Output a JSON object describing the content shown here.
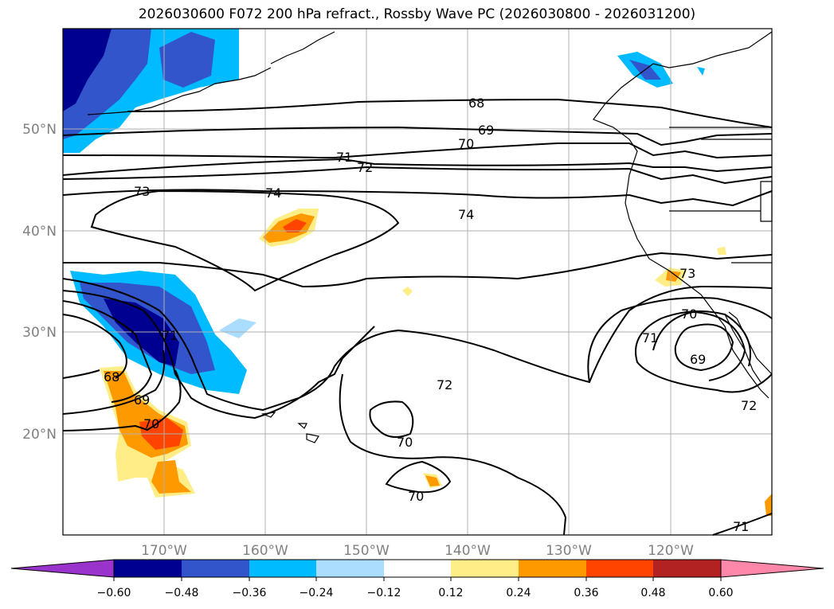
{
  "title": "2026030600 F072 200 hPa refract., Rossby Wave PC (2026030800 - 2026031200)",
  "map": {
    "lon_ticks": [
      "170°W",
      "160°W",
      "150°W",
      "140°W",
      "130°W",
      "120°W"
    ],
    "lat_ticks": [
      "50°N",
      "40°N",
      "30°N",
      "20°N"
    ],
    "grid": true,
    "contour_labels": [
      "68",
      "69",
      "70",
      "71",
      "72",
      "73",
      "74",
      "74",
      "73",
      "70",
      "71",
      "69",
      "72",
      "71",
      "68",
      "69",
      "70",
      "72",
      "70",
      "70"
    ]
  },
  "colorbar": {
    "labels": [
      "−0.60",
      "−0.48",
      "−0.36",
      "−0.24",
      "−0.12",
      "0.12",
      "0.24",
      "0.36",
      "0.48",
      "0.60"
    ],
    "colors": [
      "#9933cc",
      "#000090",
      "#3355cc",
      "#00bbff",
      "#aaddff",
      "#ffffff",
      "#ffee88",
      "#ff9900",
      "#ff4400",
      "#b22222",
      "#ff88aa"
    ],
    "extend": "both"
  }
}
